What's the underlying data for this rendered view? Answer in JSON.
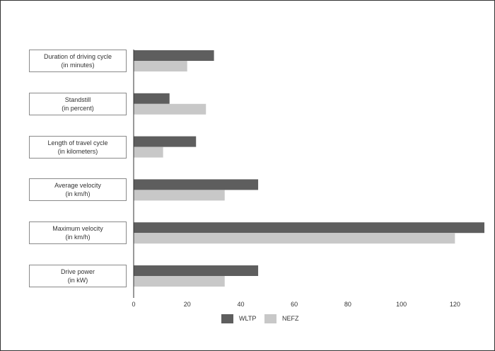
{
  "chart_data": {
    "type": "bar",
    "orientation": "horizontal",
    "categories": [
      {
        "line1": "Duration of driving cycle",
        "line2": "(in minutes)"
      },
      {
        "line1": "Standstill",
        "line2": "(in percent)"
      },
      {
        "line1": "Length of travel cycle",
        "line2": "(in kilometers)"
      },
      {
        "line1": "Average velocity",
        "line2": "(in km/h)"
      },
      {
        "line1": "Maximum velocity",
        "line2": "(in km/h)"
      },
      {
        "line1": "Drive power",
        "line2": "(in kW)"
      }
    ],
    "series": [
      {
        "name": "WLTP",
        "color": "#5e5e5e",
        "values": [
          30,
          13.4,
          23.3,
          46.5,
          131.3,
          46.5
        ]
      },
      {
        "name": "NEFZ",
        "color": "#c8c8c8",
        "values": [
          20,
          27,
          11,
          34,
          120,
          34
        ]
      }
    ],
    "xlim": [
      0,
      131
    ],
    "xticks": [
      0,
      20,
      40,
      60,
      80,
      100,
      120
    ],
    "legend_position": "bottom-center",
    "grid": false
  }
}
